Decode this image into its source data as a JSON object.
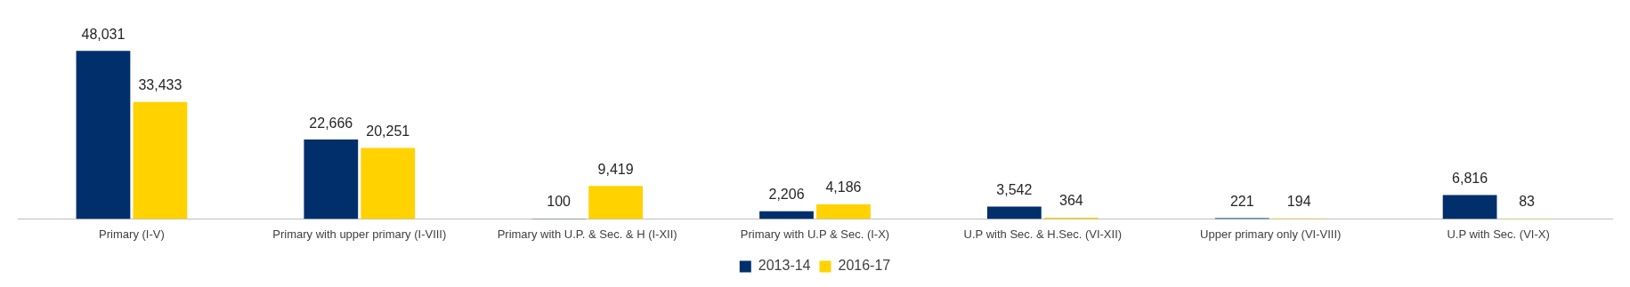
{
  "chart_data": {
    "type": "bar",
    "categories": [
      "Primary (I-V)",
      "Primary with upper primary (I-VIII)",
      "Primary with U.P. & Sec. & H (I-XII)",
      "Primary with U.P & Sec. (I-X)",
      "U.P with Sec. & H.Sec. (VI-XII)",
      "Upper primary only (VI-VIII)",
      "U.P with Sec. (VI-X)"
    ],
    "series": [
      {
        "name": "2013-14",
        "color": "#002f6c",
        "values": [
          48031,
          22666,
          100,
          2206,
          3542,
          221,
          6816
        ],
        "value_labels": [
          "48,031",
          "22,666",
          "100",
          "2,206",
          "3,542",
          "221",
          "6,816"
        ]
      },
      {
        "name": "2016-17",
        "color": "#ffd200",
        "values": [
          33433,
          20251,
          9419,
          4186,
          364,
          194,
          83
        ],
        "value_labels": [
          "33,433",
          "20,251",
          "9,419",
          "4,186",
          "364",
          "194",
          "83"
        ]
      }
    ],
    "legend": "bottom",
    "grid": false
  }
}
